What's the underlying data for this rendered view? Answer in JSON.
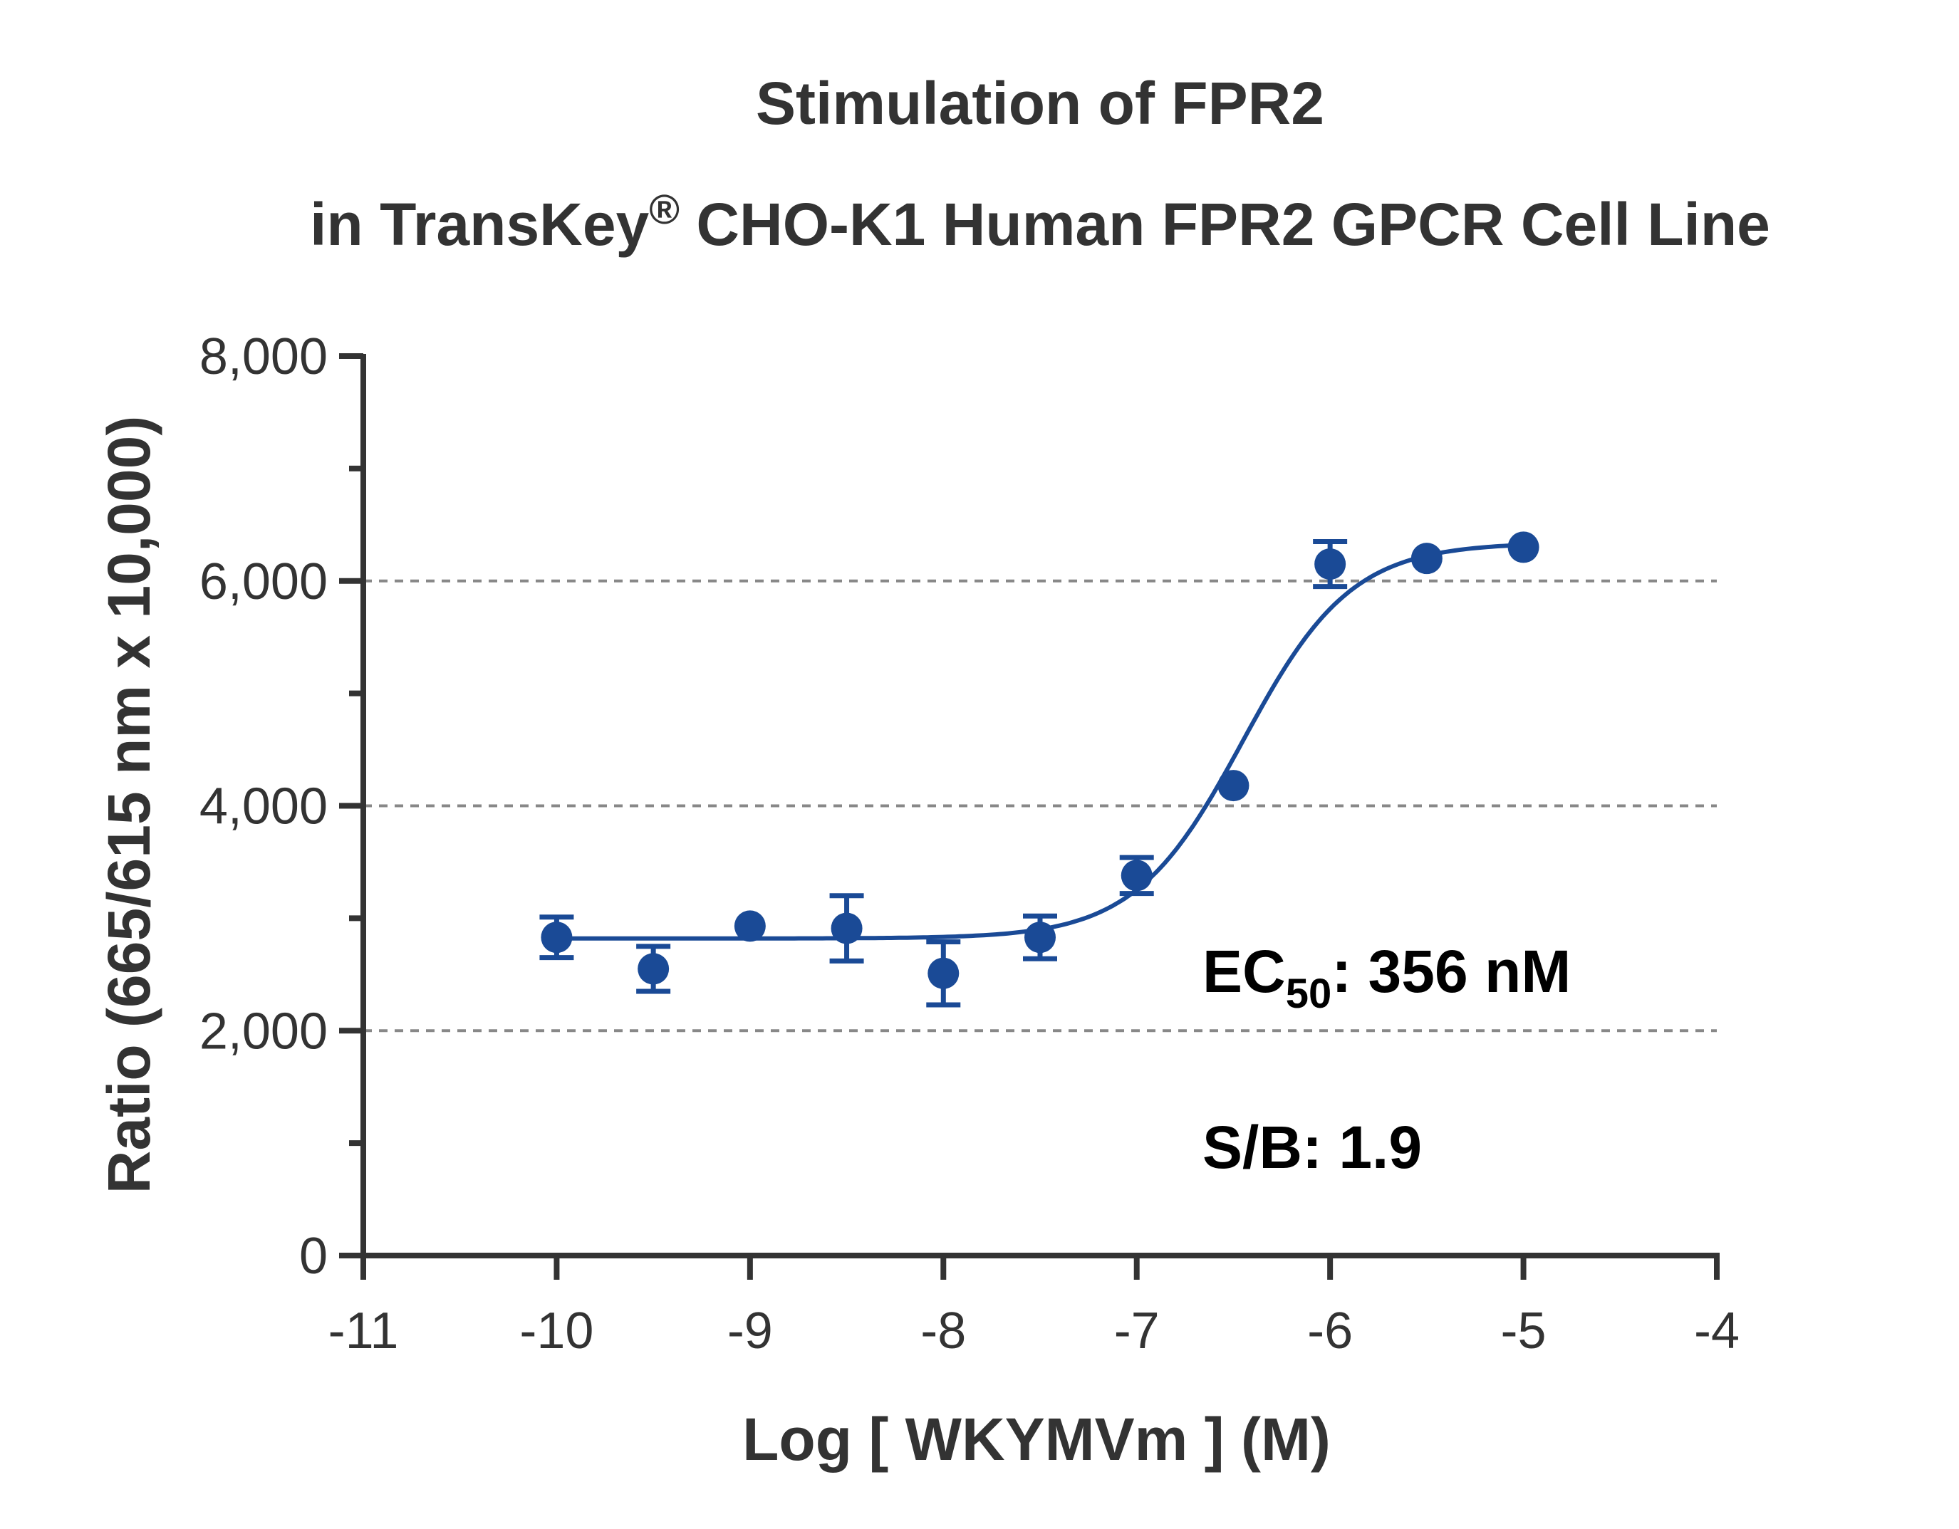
{
  "chart_data": {
    "type": "scatter",
    "title_line1": "Stimulation of  FPR2",
    "title_line2_prefix": "in TransKey",
    "title_line2_sup": "®",
    "title_line2_suffix": " CHO-K1 Human FPR2 GPCR Cell Line",
    "xlabel": "Log [ WKYMVm ]  (M)",
    "ylabel": "Ratio (665/615 nm x 10,000)",
    "xlim": [
      -11,
      -4
    ],
    "ylim": [
      0,
      8000
    ],
    "x_ticks": [
      -11,
      -10,
      -9,
      -8,
      -7,
      -6,
      -5,
      -4
    ],
    "x_tick_labels": [
      "-11",
      "-10",
      "-9",
      "-8",
      "-7",
      "-6",
      "-5",
      "-4"
    ],
    "y_ticks": [
      0,
      2000,
      4000,
      6000,
      8000
    ],
    "y_tick_labels": [
      "0",
      "2,000",
      "4,000",
      "6,000",
      "8,000"
    ],
    "y_minor_ticks": [
      1000,
      3000,
      5000,
      7000
    ],
    "gridlines_y": [
      2000,
      4000,
      6000
    ],
    "grid_style": "dashed horizontal at 2,000 / 4,000 / 6,000",
    "series": [
      {
        "x": [
          -10,
          -9.5,
          -9,
          -8.5,
          -8,
          -7.5,
          -7,
          -6.5,
          -6,
          -5.5,
          -5
        ],
        "y": [
          2830,
          2550,
          2930,
          2910,
          2510,
          2830,
          3380,
          4180,
          6150,
          6200,
          6300
        ],
        "err": [
          180,
          200,
          0,
          290,
          280,
          190,
          160,
          0,
          200,
          0,
          0
        ]
      }
    ],
    "fit": {
      "model": "4-parameter logistic",
      "bottom": 2820,
      "top": 6340,
      "log_ec50": -6.45,
      "hill_slope": 1.55
    },
    "annotation_ec_prefix": "EC",
    "annotation_ec_sub": "50",
    "annotation_ec_suffix": ": 356 nM",
    "annotation_sb": "S/B: 1.9",
    "colors": {
      "series": "#1a4a96",
      "axis": "#333333",
      "grid": "#888888",
      "annotation": "#000000"
    }
  }
}
